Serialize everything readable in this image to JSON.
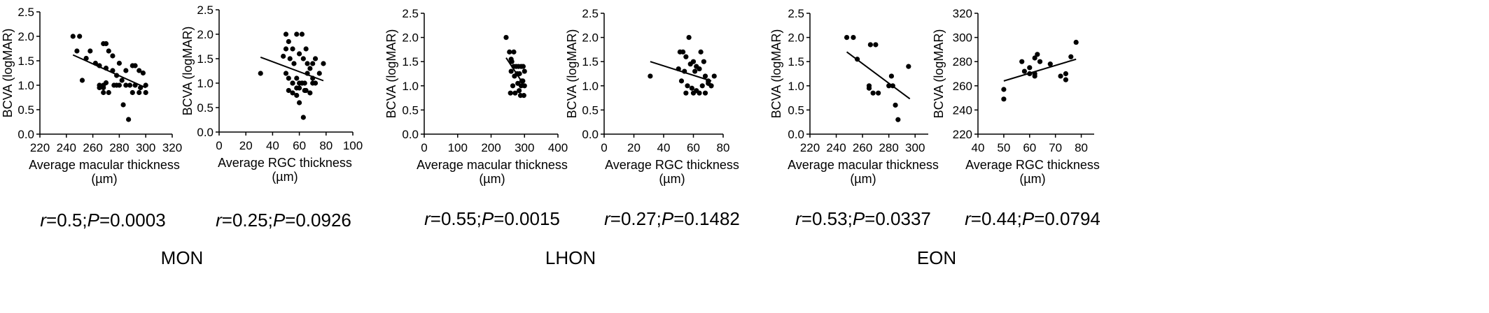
{
  "chart_data": [
    {
      "type": "scatter",
      "ylabel": "BCVA (logMAR)",
      "xlabel": [
        "Average macular thickness",
        "(µm)"
      ],
      "xlim": [
        220,
        320
      ],
      "xticks": [
        220,
        240,
        260,
        280,
        300,
        320
      ],
      "ylim": [
        0,
        2.5
      ],
      "yticks": [
        "0.0",
        "0.5",
        "1.0",
        "1.5",
        "2.0",
        "2.5"
      ],
      "x": [
        245,
        248,
        250,
        255,
        252,
        258,
        262,
        265,
        268,
        270,
        272,
        275,
        270,
        268,
        265,
        275,
        278,
        280,
        282,
        285,
        288,
        290,
        292,
        295,
        298,
        300,
        268,
        272,
        276,
        280,
        283,
        287,
        290,
        295,
        300,
        270,
        265,
        268,
        278,
        285,
        292,
        296
      ],
      "y": [
        2.0,
        1.7,
        2.0,
        1.55,
        1.1,
        1.7,
        1.45,
        1.4,
        1.85,
        1.85,
        1.7,
        1.6,
        1.35,
        1.0,
        0.95,
        1.3,
        1.2,
        1.45,
        1.1,
        1.3,
        1.0,
        1.4,
        1.4,
        1.3,
        1.25,
        1.0,
        0.85,
        0.85,
        1.0,
        1.0,
        0.6,
        0.3,
        0.85,
        0.85,
        0.85,
        1.05,
        1.0,
        0.95,
        1.0,
        1.0,
        1.0,
        0.95
      ],
      "trend": {
        "x1": 245,
        "y1": 1.62,
        "x2": 300,
        "y2": 0.95
      }
    },
    {
      "type": "scatter",
      "ylabel": "BCVA (logMAR)",
      "xlabel": [
        "Average RGC thickness",
        "(µm)"
      ],
      "xlim": [
        0,
        100
      ],
      "xticks": [
        0,
        20,
        40,
        60,
        80,
        100
      ],
      "ylim": [
        0,
        2.5
      ],
      "yticks": [
        "0.0",
        "0.5",
        "1.0",
        "1.5",
        "2.0",
        "2.5"
      ],
      "x": [
        31,
        50,
        52,
        55,
        58,
        62,
        65,
        48,
        50,
        53,
        56,
        60,
        63,
        66,
        70,
        72,
        75,
        78,
        50,
        52,
        55,
        58,
        60,
        62,
        64,
        66,
        68,
        70,
        72,
        52,
        55,
        58,
        60,
        63,
        65,
        68,
        70,
        55,
        58,
        60,
        62,
        64
      ],
      "y": [
        1.2,
        2.0,
        1.85,
        1.7,
        2.0,
        2.0,
        1.7,
        1.55,
        1.7,
        1.5,
        1.4,
        1.6,
        1.5,
        1.4,
        1.4,
        1.5,
        1.2,
        1.4,
        1.2,
        1.1,
        1.0,
        0.9,
        1.0,
        1.0,
        1.0,
        1.2,
        1.3,
        1.1,
        1.0,
        0.85,
        0.8,
        0.75,
        0.6,
        0.3,
        0.85,
        0.8,
        1.0,
        1.0,
        1.1,
        0.9,
        1.0,
        0.85
      ],
      "trend": {
        "x1": 31,
        "y1": 1.53,
        "x2": 78,
        "y2": 1.05
      }
    },
    {
      "type": "scatter",
      "ylabel": "BCVA (logMAR)",
      "xlabel": [
        "Average macular thickness",
        "(µm)"
      ],
      "xlim": [
        0,
        400
      ],
      "xticks": [
        0,
        100,
        200,
        300,
        400
      ],
      "ylim": [
        0,
        2.5
      ],
      "yticks": [
        "0.0",
        "0.5",
        "1.0",
        "1.5",
        "2.0",
        "2.5"
      ],
      "x": [
        245,
        255,
        268,
        282,
        260,
        275,
        290,
        300,
        260,
        270,
        285,
        295,
        265,
        280,
        290,
        300,
        258,
        272,
        288,
        298,
        262,
        278,
        292,
        268,
        284,
        296
      ],
      "y": [
        2.0,
        1.7,
        1.7,
        1.4,
        1.55,
        1.4,
        1.4,
        1.3,
        1.3,
        1.2,
        1.25,
        1.1,
        1.0,
        1.05,
        1.0,
        1.0,
        0.85,
        0.85,
        0.8,
        0.8,
        1.5,
        1.25,
        1.1,
        1.4,
        0.9,
        1.4
      ],
      "trend": {
        "x1": 245,
        "y1": 1.58,
        "x2": 300,
        "y2": 1.0
      }
    },
    {
      "type": "scatter",
      "ylabel": "BCVA (logMAR)",
      "xlabel": [
        "Average RGC thickness",
        "(µm)"
      ],
      "xlim": [
        0,
        80
      ],
      "xticks": [
        0,
        20,
        40,
        60,
        80
      ],
      "ylim": [
        0,
        2.5
      ],
      "yticks": [
        "0.0",
        "0.5",
        "1.0",
        "1.5",
        "2.0",
        "2.5"
      ],
      "x": [
        31,
        51,
        53,
        55,
        57,
        60,
        62,
        65,
        67,
        50,
        54,
        58,
        61,
        64,
        68,
        70,
        72,
        74,
        52,
        56,
        59,
        62,
        66,
        70,
        55,
        60,
        64,
        68,
        72
      ],
      "y": [
        1.2,
        1.7,
        1.7,
        1.6,
        2.0,
        1.5,
        1.4,
        1.7,
        1.5,
        1.35,
        1.3,
        1.45,
        1.3,
        1.35,
        1.2,
        1.1,
        1.0,
        1.2,
        1.1,
        1.0,
        0.95,
        0.9,
        1.0,
        1.05,
        0.85,
        0.85,
        0.85,
        0.85,
        1.0
      ],
      "trend": {
        "x1": 31,
        "y1": 1.5,
        "x2": 72,
        "y2": 1.1
      }
    },
    {
      "type": "scatter",
      "ylabel": "BCVA (logMAR)",
      "xlabel": [
        "Average macular thickness",
        "(µm)"
      ],
      "xlim": [
        220,
        310
      ],
      "xticks": [
        220,
        240,
        260,
        280,
        300
      ],
      "ylim": [
        0,
        2.5
      ],
      "yticks": [
        "0.0",
        "0.5",
        "1.0",
        "1.5",
        "2.0",
        "2.5"
      ],
      "x": [
        248,
        253,
        256,
        266,
        270,
        265,
        268,
        272,
        280,
        282,
        285,
        287,
        283,
        295,
        265
      ],
      "y": [
        2.0,
        2.0,
        1.55,
        1.85,
        1.85,
        1.0,
        0.85,
        0.85,
        1.0,
        1.2,
        0.6,
        0.3,
        1.0,
        1.4,
        0.95
      ],
      "trend": {
        "x1": 248,
        "y1": 1.7,
        "x2": 296,
        "y2": 0.73
      }
    },
    {
      "type": "scatter",
      "ylabel": "BCVA (logMAR)",
      "xlabel": [
        "Average RGC thickness",
        "(µm)"
      ],
      "xlim": [
        40,
        85
      ],
      "xticks": [
        40,
        50,
        60,
        70,
        80
      ],
      "ylim": [
        220,
        320
      ],
      "yticks": [
        "220",
        "240",
        "260",
        "280",
        "300",
        "320"
      ],
      "x": [
        50,
        50,
        57,
        58,
        60,
        60,
        62,
        62,
        63,
        64,
        62,
        68,
        72,
        74,
        74,
        76,
        78
      ],
      "y": [
        257,
        249,
        280,
        272,
        270,
        275,
        283,
        270,
        286,
        280,
        268,
        278,
        268,
        265,
        270,
        284,
        296
      ],
      "trend": {
        "x1": 50,
        "y1": 264,
        "x2": 78,
        "y2": 282
      }
    }
  ],
  "stats": [
    {
      "r": "0.5",
      "p": "0.0003"
    },
    {
      "r": "0.25",
      "p": "0.0926"
    },
    {
      "r": "0.55",
      "p": "0.0015"
    },
    {
      "r": "0.27",
      "p": "0.1482"
    },
    {
      "r": "0.53",
      "p": "0.0337"
    },
    {
      "r": "0.44",
      "p": "0.0794"
    }
  ],
  "labels": {
    "r": "r",
    "p": "P",
    "eq": "=",
    "sep": ";"
  },
  "groups": [
    "MON",
    "LHON",
    "EON"
  ]
}
